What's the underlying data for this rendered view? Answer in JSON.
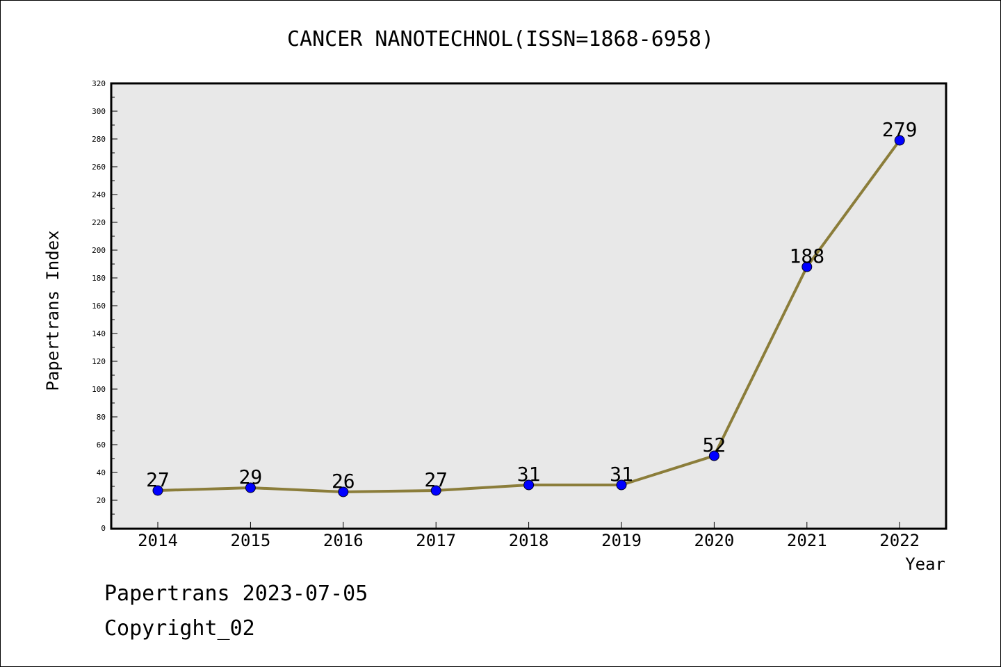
{
  "chart_data": {
    "type": "line",
    "title": "CANCER NANOTECHNOL(ISSN=1868-6958)",
    "xlabel": "Year",
    "ylabel": "Papertrans Index",
    "categories": [
      "2014",
      "2015",
      "2016",
      "2017",
      "2018",
      "2019",
      "2020",
      "2021",
      "2022"
    ],
    "series": [
      {
        "values": [
          27,
          29,
          26,
          27,
          31,
          31,
          52,
          188,
          279
        ]
      }
    ],
    "data_labels": [
      "27",
      "29",
      "26",
      "27",
      "31",
      "31",
      "52",
      "188",
      "279"
    ],
    "ylim": [
      0,
      320
    ],
    "yticks": [
      "0",
      "20",
      "40",
      "60",
      "80",
      "100",
      "120",
      "140",
      "160",
      "180",
      "200",
      "220",
      "240",
      "260",
      "280",
      "300",
      "320"
    ],
    "grid": false,
    "colors": {
      "line": "#8B7D3A",
      "marker": "#0000FF",
      "plot_bg": "#E8E8E8"
    }
  },
  "footer": {
    "line1": "Papertrans 2023-07-05",
    "line2": "Copyright_02"
  }
}
